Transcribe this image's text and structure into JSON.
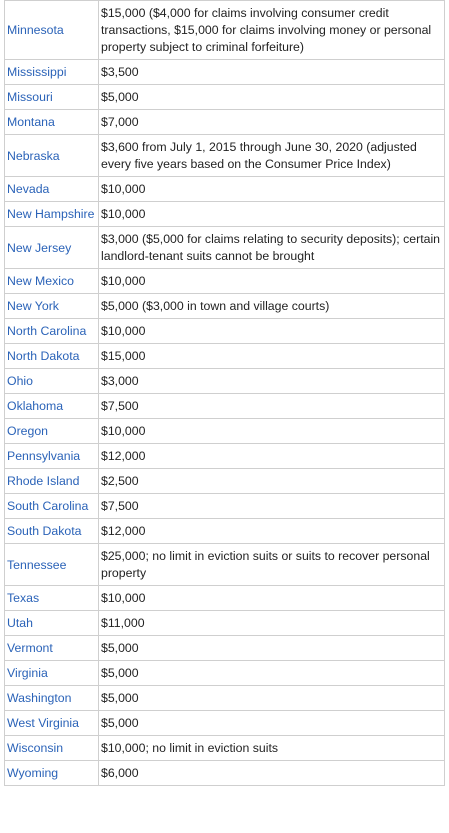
{
  "rows": [
    {
      "state": "Minnesota",
      "limit": "$15,000 ($4,000 for claims involving consumer credit transactions, $15,000 for claims involving money or personal property subject to criminal forfeiture)"
    },
    {
      "state": "Mississippi",
      "limit": "$3,500"
    },
    {
      "state": "Missouri",
      "limit": "$5,000"
    },
    {
      "state": "Montana",
      "limit": "$7,000"
    },
    {
      "state": "Nebraska",
      "limit": "$3,600 from July 1, 2015 through June 30, 2020 (adjusted every five years based on the Consumer Price Index)"
    },
    {
      "state": "Nevada",
      "limit": "$10,000"
    },
    {
      "state": "New Hampshire",
      "limit": "$10,000"
    },
    {
      "state": "New Jersey",
      "limit": "$3,000 ($5,000 for claims relating to security deposits); certain landlord-tenant suits cannot be brought"
    },
    {
      "state": "New Mexico",
      "limit": "$10,000"
    },
    {
      "state": "New York",
      "limit": "$5,000 ($3,000 in town and village courts)"
    },
    {
      "state": "North Carolina",
      "limit": "$10,000"
    },
    {
      "state": "North Dakota",
      "limit": "$15,000"
    },
    {
      "state": "Ohio",
      "limit": "$3,000"
    },
    {
      "state": "Oklahoma",
      "limit": "$7,500"
    },
    {
      "state": "Oregon",
      "limit": "$10,000"
    },
    {
      "state": "Pennsylvania",
      "limit": "$12,000"
    },
    {
      "state": "Rhode Island",
      "limit": "$2,500"
    },
    {
      "state": "South Carolina",
      "limit": "$7,500"
    },
    {
      "state": "South Dakota",
      "limit": "$12,000"
    },
    {
      "state": "Tennessee",
      "limit": "$25,000; no limit in eviction suits or suits to recover personal property"
    },
    {
      "state": "Texas",
      "limit": "$10,000"
    },
    {
      "state": "Utah",
      "limit": "$11,000"
    },
    {
      "state": "Vermont",
      "limit": "$5,000"
    },
    {
      "state": "Virginia",
      "limit": "$5,000"
    },
    {
      "state": "Washington",
      "limit": "$5,000"
    },
    {
      "state": "West Virginia",
      "limit": "$5,000"
    },
    {
      "state": "Wisconsin",
      "limit": "$10,000; no limit in eviction suits"
    },
    {
      "state": "Wyoming",
      "limit": "$6,000"
    }
  ]
}
